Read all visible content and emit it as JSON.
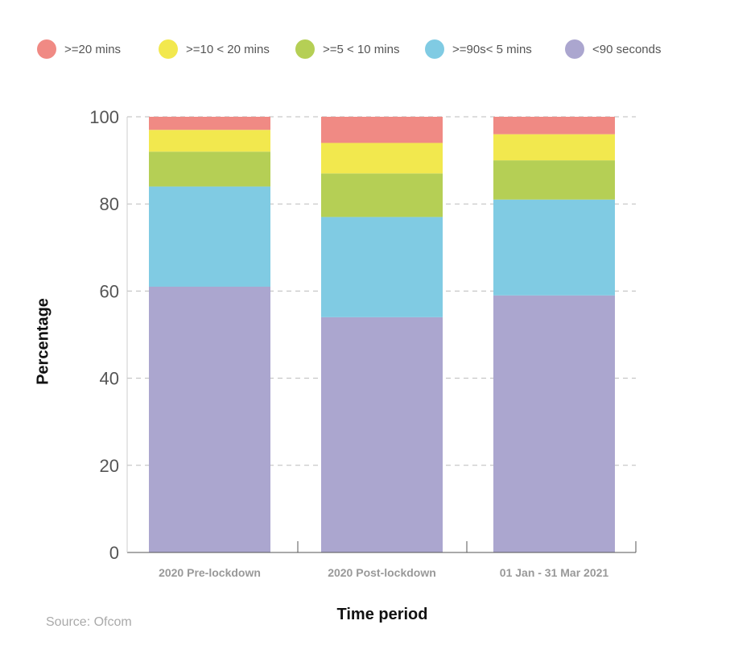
{
  "chart_data": {
    "type": "bar",
    "stacked": true,
    "categories": [
      "2020 Pre-lockdown",
      "2020 Post-lockdown",
      "01 Jan - 31 Mar 2021"
    ],
    "series": [
      {
        "name": "<90 seconds",
        "color": "#aba6cf",
        "values": [
          61,
          54,
          59
        ]
      },
      {
        "name": ">=90s< 5 mins",
        "color": "#80cbe3",
        "values": [
          23,
          23,
          22
        ]
      },
      {
        "name": ">=5 < 10 mins",
        "color": "#b5cf55",
        "values": [
          8,
          10,
          9
        ]
      },
      {
        "name": ">=10 < 20 mins",
        "color": "#f2e84e",
        "values": [
          5,
          7,
          6
        ]
      },
      {
        "name": ">=20 mins",
        "color": "#f08a84",
        "values": [
          3,
          6,
          4
        ]
      }
    ],
    "xlabel": "Time period",
    "ylabel": "Percentage",
    "ylim": [
      0,
      100
    ],
    "yticks": [
      0,
      20,
      40,
      60,
      80,
      100
    ],
    "grid": "horizontal dashed",
    "legend_position": "top"
  },
  "legend": [
    {
      "label": ">=20 mins",
      "color": "#f08a84"
    },
    {
      "label": ">=10 < 20 mins",
      "color": "#f2e84e"
    },
    {
      "label": ">=5 < 10 mins",
      "color": "#b5cf55"
    },
    {
      "label": ">=90s< 5 mins",
      "color": "#80cbe3"
    },
    {
      "label": "<90 seconds",
      "color": "#aba6cf"
    }
  ],
  "source": "Source: Ofcom"
}
